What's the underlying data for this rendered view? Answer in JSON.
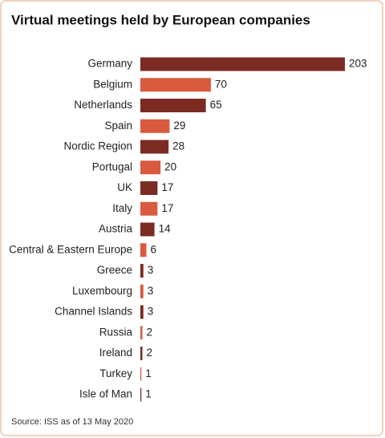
{
  "chart_data": {
    "type": "bar",
    "orientation": "horizontal",
    "title": "Virtual meetings held by European companies",
    "source": "Source: ISS as of 13 May 2020",
    "categories": [
      "Germany",
      "Belgium",
      "Netherlands",
      "Spain",
      "Nordic Region",
      "Portugal",
      "UK",
      "Italy",
      "Austria",
      "Central & Eastern Europe",
      "Greece",
      "Luxembourg",
      "Channel Islands",
      "Russia",
      "Ireland",
      "Turkey",
      "Isle of Man"
    ],
    "values": [
      203,
      70,
      65,
      29,
      28,
      20,
      17,
      17,
      14,
      6,
      3,
      3,
      3,
      2,
      2,
      1,
      1
    ],
    "colors": [
      "#7b2b22",
      "#d95a3f",
      "#7b2b22",
      "#d95a3f",
      "#7b2b22",
      "#d95a3f",
      "#7b2b22",
      "#d95a3f",
      "#7b2b22",
      "#d95a3f",
      "#7b2b22",
      "#d95a3f",
      "#7b2b22",
      "#d95a3f",
      "#7b2b22",
      "#d95a3f",
      "#7b2b22"
    ]
  }
}
